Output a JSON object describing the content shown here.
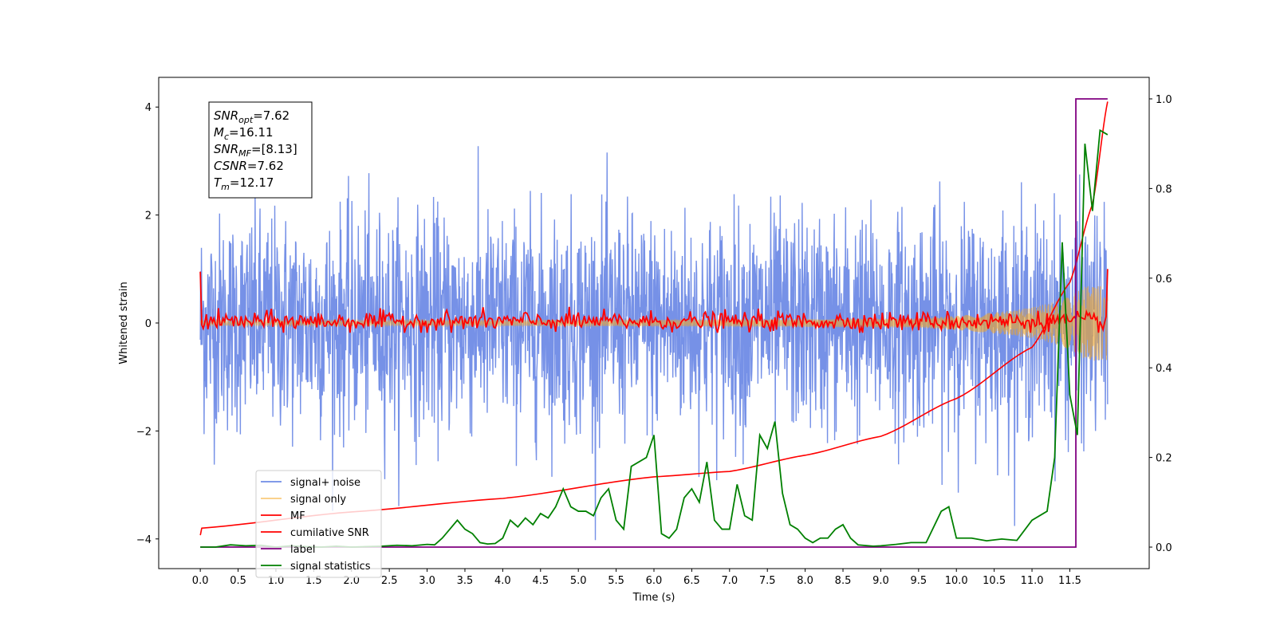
{
  "chart_data": {
    "type": "line",
    "xlabel": "Time (s)",
    "ylabel": "Whitened strain",
    "xlim": [
      -0.55,
      12.55
    ],
    "ylim_left": [
      -4.55,
      4.55
    ],
    "ylim_right": [
      -0.048,
      1.048
    ],
    "x_ticks": [
      0.0,
      0.5,
      1.0,
      1.5,
      2.0,
      2.5,
      3.0,
      3.5,
      4.0,
      4.5,
      5.0,
      5.5,
      6.0,
      6.5,
      7.0,
      7.5,
      8.0,
      8.5,
      9.0,
      9.5,
      10.0,
      10.5,
      11.0,
      11.5
    ],
    "x_tick_labels": [
      "0.0",
      "0.5",
      "1.0",
      "1.5",
      "2.0",
      "2.5",
      "3.0",
      "3.5",
      "4.0",
      "4.5",
      "5.0",
      "5.5",
      "6.0",
      "6.5",
      "7.0",
      "7.5",
      "8.0",
      "8.5",
      "9.0",
      "9.5",
      "10.0",
      "10.5",
      "11.0",
      "11.5"
    ],
    "y_left_ticks": [
      -4,
      -2,
      0,
      2,
      4
    ],
    "y_left_tick_labels": [
      "−4",
      "−2",
      "0",
      "2",
      "4"
    ],
    "y_right_ticks": [
      0.0,
      0.2,
      0.4,
      0.6,
      0.8,
      1.0
    ],
    "y_right_tick_labels": [
      "0.0",
      "0.2",
      "0.4",
      "0.6",
      "0.8",
      "1.0"
    ],
    "grid": false,
    "legend_position": "lower-left",
    "series": [
      {
        "name": "signal+ noise",
        "axis": "left",
        "color": "#6f8be6",
        "style": "gaussian-noise, std≈1.0, peaks ≈ ±4.1, 0–12.0 s"
      },
      {
        "name": "signal only",
        "axis": "left",
        "color": "#f5a623",
        "style": "chirp, amplitude grows from ≈0.02 to ≈0.65 near 12.0 s"
      },
      {
        "name": "MF",
        "axis": "left",
        "color": "#ff0000",
        "points": [
          [
            0.0,
            0.95
          ],
          [
            0.05,
            0.1
          ],
          [
            0.5,
            0.05
          ],
          [
            1.5,
            0.35
          ],
          [
            3.0,
            0.0
          ],
          [
            6.0,
            0.3
          ],
          [
            8.5,
            0.35
          ],
          [
            11.95,
            0.1
          ],
          [
            12.0,
            1.0
          ]
        ]
      },
      {
        "name": "cumilative SNR",
        "axis": "left",
        "color": "#ff0000",
        "points": [
          [
            0.0,
            -3.93
          ],
          [
            0.02,
            -3.8
          ],
          [
            2.0,
            -3.5
          ],
          [
            4.0,
            -3.25
          ],
          [
            6.0,
            -2.85
          ],
          [
            7.0,
            -2.75
          ],
          [
            8.0,
            -2.45
          ],
          [
            9.0,
            -2.1
          ],
          [
            10.0,
            -1.4
          ],
          [
            11.0,
            -0.45
          ],
          [
            11.5,
            0.75
          ],
          [
            11.8,
            2.2
          ],
          [
            12.0,
            4.1
          ]
        ]
      },
      {
        "name": "label",
        "axis": "right",
        "color": "#800080",
        "points": [
          [
            0.0,
            0.0
          ],
          [
            11.58,
            0.0
          ],
          [
            11.58,
            1.0
          ],
          [
            12.0,
            1.0
          ]
        ]
      },
      {
        "name": "signal statistics",
        "axis": "right",
        "color": "#008000",
        "points": [
          [
            0.0,
            0.0
          ],
          [
            0.2,
            0.0
          ],
          [
            0.4,
            0.005
          ],
          [
            0.6,
            0.003
          ],
          [
            0.8,
            0.004
          ],
          [
            1.0,
            0.0
          ],
          [
            1.2,
            0.003
          ],
          [
            1.4,
            0.001
          ],
          [
            1.6,
            0.0
          ],
          [
            1.8,
            0.002
          ],
          [
            2.0,
            0.0
          ],
          [
            2.2,
            0.001
          ],
          [
            2.4,
            0.002
          ],
          [
            2.6,
            0.004
          ],
          [
            2.8,
            0.003
          ],
          [
            3.0,
            0.006
          ],
          [
            3.1,
            0.005
          ],
          [
            3.2,
            0.02
          ],
          [
            3.3,
            0.04
          ],
          [
            3.4,
            0.06
          ],
          [
            3.5,
            0.04
          ],
          [
            3.6,
            0.03
          ],
          [
            3.7,
            0.01
          ],
          [
            3.8,
            0.007
          ],
          [
            3.9,
            0.008
          ],
          [
            4.0,
            0.02
          ],
          [
            4.1,
            0.06
          ],
          [
            4.2,
            0.045
          ],
          [
            4.3,
            0.065
          ],
          [
            4.4,
            0.05
          ],
          [
            4.5,
            0.075
          ],
          [
            4.6,
            0.065
          ],
          [
            4.7,
            0.09
          ],
          [
            4.8,
            0.13
          ],
          [
            4.9,
            0.09
          ],
          [
            5.0,
            0.08
          ],
          [
            5.1,
            0.08
          ],
          [
            5.2,
            0.07
          ],
          [
            5.3,
            0.11
          ],
          [
            5.4,
            0.13
          ],
          [
            5.5,
            0.06
          ],
          [
            5.6,
            0.04
          ],
          [
            5.7,
            0.18
          ],
          [
            5.9,
            0.2
          ],
          [
            6.0,
            0.25
          ],
          [
            6.1,
            0.03
          ],
          [
            6.2,
            0.02
          ],
          [
            6.3,
            0.04
          ],
          [
            6.4,
            0.11
          ],
          [
            6.5,
            0.13
          ],
          [
            6.6,
            0.1
          ],
          [
            6.7,
            0.19
          ],
          [
            6.8,
            0.06
          ],
          [
            6.9,
            0.04
          ],
          [
            7.0,
            0.04
          ],
          [
            7.1,
            0.14
          ],
          [
            7.2,
            0.07
          ],
          [
            7.3,
            0.06
          ],
          [
            7.4,
            0.25
          ],
          [
            7.5,
            0.22
          ],
          [
            7.6,
            0.28
          ],
          [
            7.7,
            0.12
          ],
          [
            7.8,
            0.05
          ],
          [
            7.9,
            0.04
          ],
          [
            8.0,
            0.02
          ],
          [
            8.1,
            0.01
          ],
          [
            8.2,
            0.02
          ],
          [
            8.3,
            0.02
          ],
          [
            8.4,
            0.04
          ],
          [
            8.5,
            0.05
          ],
          [
            8.6,
            0.02
          ],
          [
            8.7,
            0.005
          ],
          [
            8.9,
            0.002
          ],
          [
            9.0,
            0.003
          ],
          [
            9.2,
            0.006
          ],
          [
            9.4,
            0.01
          ],
          [
            9.6,
            0.01
          ],
          [
            9.8,
            0.08
          ],
          [
            9.9,
            0.09
          ],
          [
            10.0,
            0.02
          ],
          [
            10.2,
            0.02
          ],
          [
            10.4,
            0.014
          ],
          [
            10.6,
            0.018
          ],
          [
            10.8,
            0.015
          ],
          [
            11.0,
            0.06
          ],
          [
            11.2,
            0.08
          ],
          [
            11.3,
            0.2
          ],
          [
            11.4,
            0.68
          ],
          [
            11.5,
            0.34
          ],
          [
            11.6,
            0.25
          ],
          [
            11.7,
            0.9
          ],
          [
            11.8,
            0.75
          ],
          [
            11.9,
            0.93
          ],
          [
            12.0,
            0.92
          ]
        ]
      }
    ],
    "annotation": [
      {
        "main": "SNR",
        "sub": "opt",
        "rest": "=7.62"
      },
      {
        "main": "M",
        "sub": "c",
        "rest": "=16.11"
      },
      {
        "main": "SNR",
        "sub": "MF",
        "rest": "=[8.13]"
      },
      {
        "main": "CSNR",
        "sub": "",
        "rest": "=7.62"
      },
      {
        "main": "T",
        "sub": "m",
        "rest": "=12.17"
      }
    ]
  }
}
